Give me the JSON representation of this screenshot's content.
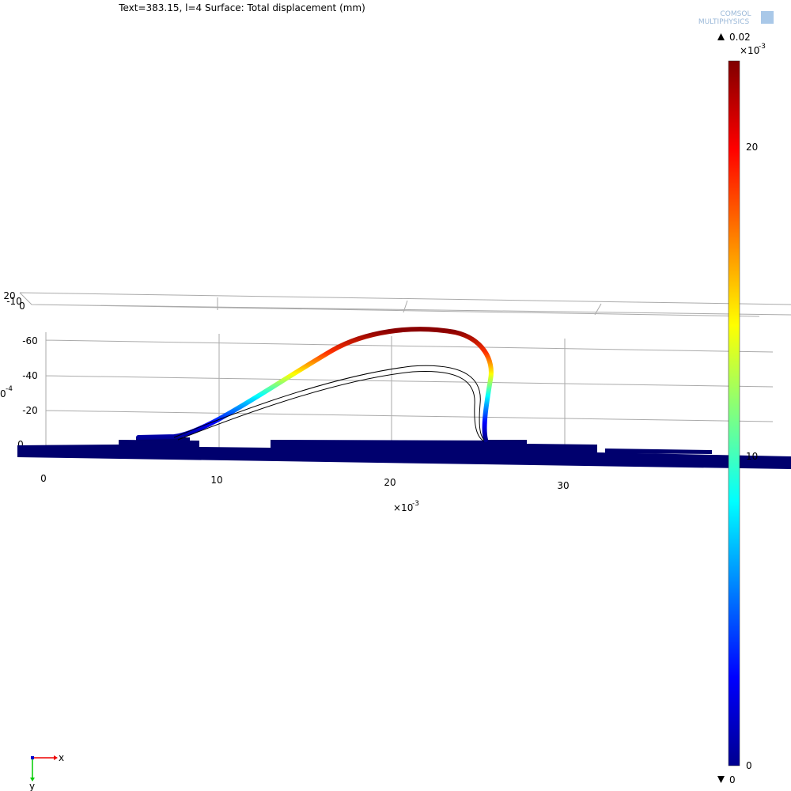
{
  "header": {
    "title": "Text=383.15, l=4   Surface: Total displacement (mm)",
    "logo_line1": "COMSOL",
    "logo_line2": "MULTIPHYSICS"
  },
  "colorbar": {
    "max": "0.02",
    "min": "0",
    "multiplier": "×10",
    "exponent": "-3",
    "ticks": [
      "20",
      "10",
      "0"
    ]
  },
  "x_axis": {
    "ticks": [
      "0",
      "10",
      "20",
      "30"
    ],
    "multiplier": "×10",
    "exponent": "-3"
  },
  "y_axis": {
    "ticks": [
      "-60",
      "-40",
      "-20",
      "0"
    ],
    "cut_label": "0",
    "exponent": "-4"
  },
  "back_axis": {
    "labels": [
      "20",
      "-10",
      "0"
    ]
  },
  "triad": {
    "x": "x",
    "y": "y"
  }
}
